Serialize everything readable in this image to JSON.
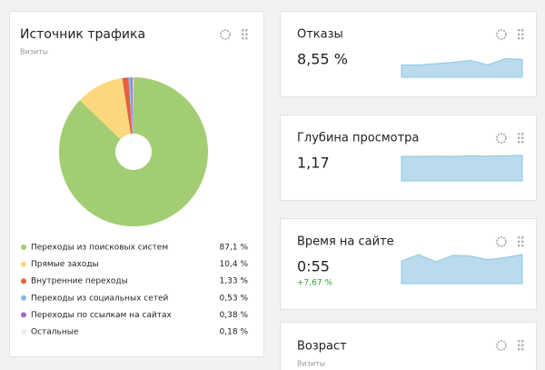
{
  "chart_data": [
    {
      "type": "pie",
      "title": "Источник трафика",
      "subtitle": "Визиты",
      "categories": [
        "Переходы из поисковых систем",
        "Прямые заходы",
        "Внутренние переходы",
        "Переходы из социальных сетей",
        "Переходы по ссылкам на сайтах",
        "Остальные"
      ],
      "values": [
        87.1,
        10.4,
        1.33,
        0.53,
        0.38,
        0.18
      ],
      "value_labels": [
        "87,1 %",
        "10,4 %",
        "1,33 %",
        "0,53 %",
        "0,38 %",
        "0,18 %"
      ],
      "colors": [
        "#a3cd72",
        "#fbd77d",
        "#e6603f",
        "#85b9e9",
        "#9b6bc4",
        "#eeeeee"
      ]
    },
    {
      "type": "area",
      "title": "Отказы",
      "headline": "8,55 %",
      "color": "#b9dbec",
      "values": [
        0.45,
        0.45,
        0.5,
        0.55,
        0.62,
        0.45,
        0.68,
        0.66
      ],
      "ylim": [
        0,
        1
      ]
    },
    {
      "type": "area",
      "title": "Глубина просмотра",
      "headline": "1,17",
      "color": "#b9dbec",
      "values": [
        0.9,
        0.9,
        0.91,
        0.9,
        0.92,
        0.91,
        0.92,
        0.94
      ],
      "ylim": [
        0,
        1
      ]
    },
    {
      "type": "area",
      "title": "Время на сайте",
      "headline": "0:55",
      "change": "+7,67 %",
      "color": "#b9dbec",
      "values": [
        0.62,
        0.8,
        0.6,
        0.78,
        0.76,
        0.66,
        0.72,
        0.8
      ],
      "ylim": [
        0,
        1
      ]
    }
  ],
  "age_widget": {
    "title": "Возраст",
    "subtitle": "Визиты"
  }
}
